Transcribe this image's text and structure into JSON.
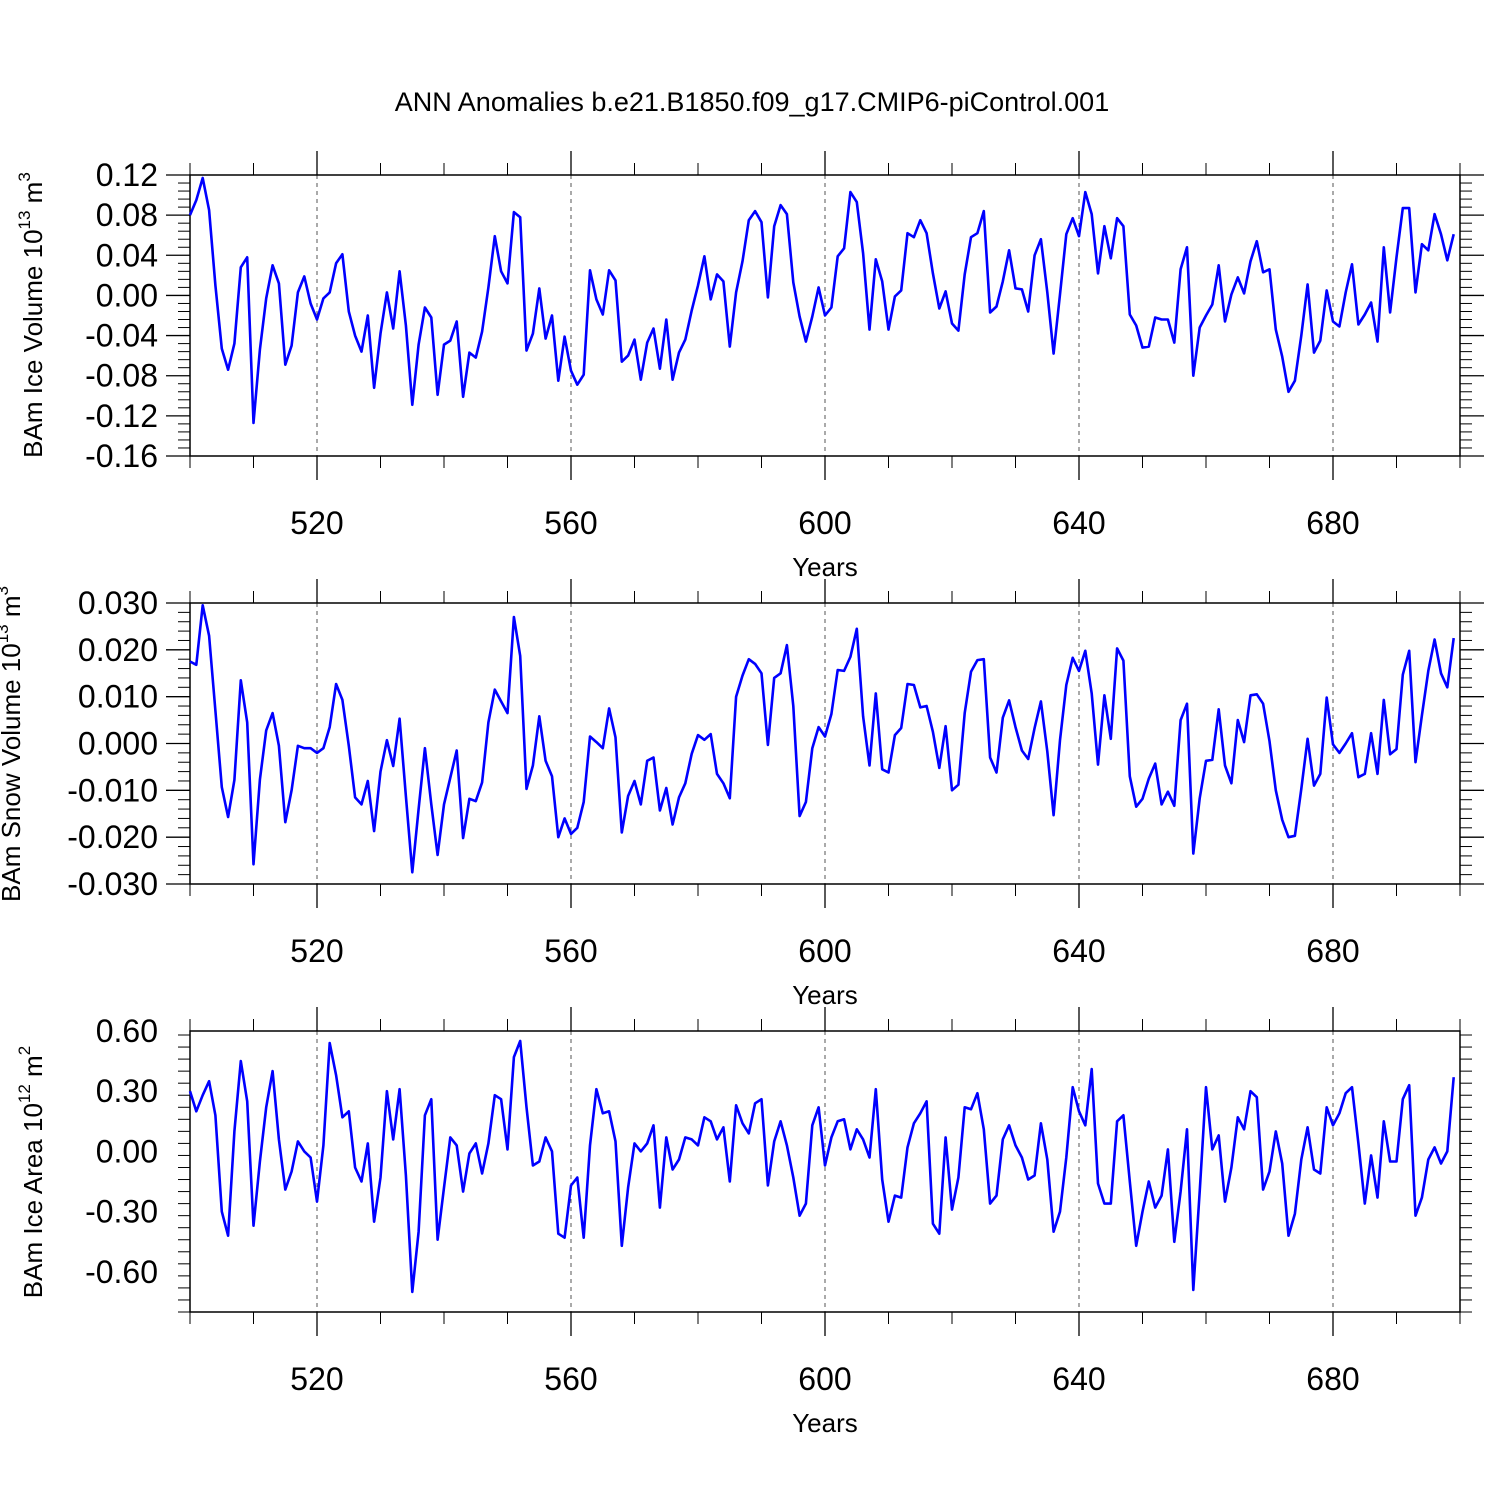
{
  "colors": {
    "series": "#0000ff",
    "axis": "#000000",
    "grid": "#555555"
  },
  "chart_data": [
    {
      "type": "line",
      "title": "ANN Anomalies b.e21.B1850.f09_g17.CMIP6-piControl.001",
      "ylabel_parts": [
        "BAm Ice Volume 10",
        "13",
        " m",
        "3"
      ],
      "xlabel": "Years",
      "xlim": [
        500,
        700
      ],
      "ylim": [
        -0.16,
        0.12
      ],
      "x_ticks": [
        520,
        560,
        600,
        640,
        680
      ],
      "x_tick_labels": [
        "520",
        "560",
        "600",
        "640",
        "680"
      ],
      "y_ticks": [
        0.12,
        0.08,
        0.04,
        0.0,
        -0.04,
        -0.08,
        -0.12,
        -0.16
      ],
      "y_tick_labels": [
        "0.12",
        "0.08",
        "0.04",
        "0.00",
        "-0.04",
        "-0.08",
        "-0.12",
        "-0.16"
      ],
      "x_start": 500,
      "values": [
        0.08,
        0.095,
        0.117,
        0.085,
        0.01,
        -0.053,
        -0.074,
        -0.048,
        0.028,
        0.038,
        -0.127,
        -0.054,
        -0.003,
        0.03,
        0.012,
        -0.069,
        -0.05,
        0.003,
        0.019,
        -0.008,
        -0.024,
        -0.003,
        0.003,
        0.032,
        0.041,
        -0.016,
        -0.04,
        -0.056,
        -0.02,
        -0.092,
        -0.038,
        0.003,
        -0.033,
        0.024,
        -0.03,
        -0.109,
        -0.049,
        -0.012,
        -0.022,
        -0.099,
        -0.049,
        -0.045,
        -0.026,
        -0.101,
        -0.057,
        -0.062,
        -0.036,
        0.008,
        0.059,
        0.024,
        0.012,
        0.083,
        0.078,
        -0.055,
        -0.038,
        0.007,
        -0.043,
        -0.02,
        -0.085,
        -0.041,
        -0.075,
        -0.089,
        -0.079,
        0.025,
        -0.004,
        -0.019,
        0.025,
        0.015,
        -0.066,
        -0.06,
        -0.044,
        -0.084,
        -0.047,
        -0.033,
        -0.073,
        -0.024,
        -0.084,
        -0.057,
        -0.044,
        -0.015,
        0.01,
        0.039,
        -0.004,
        0.021,
        0.014,
        -0.051,
        0.003,
        0.034,
        0.075,
        0.084,
        0.073,
        -0.002,
        0.069,
        0.09,
        0.081,
        0.013,
        -0.021,
        -0.046,
        -0.021,
        0.008,
        -0.02,
        -0.012,
        0.039,
        0.047,
        0.103,
        0.093,
        0.042,
        -0.034,
        0.036,
        0.014,
        -0.034,
        -0.001,
        0.005,
        0.062,
        0.058,
        0.075,
        0.062,
        0.022,
        -0.013,
        0.004,
        -0.028,
        -0.035,
        0.021,
        0.058,
        0.062,
        0.084,
        -0.017,
        -0.011,
        0.014,
        0.045,
        0.007,
        0.006,
        -0.016,
        0.04,
        0.056,
        0.003,
        -0.058,
        0.001,
        0.061,
        0.077,
        0.059,
        0.103,
        0.081,
        0.022,
        0.069,
        0.037,
        0.077,
        0.069,
        -0.019,
        -0.03,
        -0.052,
        -0.051,
        -0.022,
        -0.024,
        -0.024,
        -0.047,
        0.026,
        0.048,
        -0.08,
        -0.032,
        -0.02,
        -0.009,
        0.03,
        -0.026,
        0.001,
        0.018,
        0.002,
        0.034,
        0.054,
        0.023,
        0.026,
        -0.034,
        -0.061,
        -0.096,
        -0.085,
        -0.04,
        0.011,
        -0.057,
        -0.045,
        0.005,
        -0.026,
        -0.031,
        0.003,
        0.031,
        -0.029,
        -0.019,
        -0.007,
        -0.046,
        0.048,
        -0.017,
        0.038,
        0.087,
        0.087,
        0.003,
        0.051,
        0.045,
        0.081,
        0.061,
        0.035,
        0.061
      ]
    },
    {
      "type": "line",
      "ylabel_parts": [
        "BAm Snow Volume 10",
        "13",
        " m",
        "3"
      ],
      "xlabel": "Years",
      "xlim": [
        500,
        700
      ],
      "ylim": [
        -0.03,
        0.03
      ],
      "x_ticks": [
        520,
        560,
        600,
        640,
        680
      ],
      "x_tick_labels": [
        "520",
        "560",
        "600",
        "640",
        "680"
      ],
      "y_ticks": [
        0.03,
        0.02,
        0.01,
        0.0,
        -0.01,
        -0.02,
        -0.03
      ],
      "y_tick_labels": [
        "0.030",
        "0.020",
        "0.010",
        "0.000",
        "-0.010",
        "-0.020",
        "-0.030"
      ],
      "x_start": 500,
      "values": [
        0.0175,
        0.0168,
        0.0295,
        0.023,
        0.007,
        -0.0093,
        -0.0157,
        -0.0078,
        0.0135,
        0.0045,
        -0.0258,
        -0.0077,
        0.0028,
        0.0065,
        -0.0005,
        -0.0168,
        -0.01,
        -0.0005,
        -0.001,
        -0.001,
        -0.002,
        -0.001,
        0.0035,
        0.0127,
        0.0093,
        -0.0005,
        -0.0115,
        -0.013,
        -0.008,
        -0.0187,
        -0.006,
        0.0007,
        -0.0048,
        0.0053,
        -0.0113,
        -0.0275,
        -0.014,
        -0.001,
        -0.013,
        -0.0238,
        -0.013,
        -0.0073,
        -0.0015,
        -0.0202,
        -0.0118,
        -0.0123,
        -0.0083,
        0.0045,
        0.0115,
        0.009,
        0.0065,
        0.027,
        0.0187,
        -0.0097,
        -0.0047,
        0.0058,
        -0.0037,
        -0.007,
        -0.02,
        -0.016,
        -0.0193,
        -0.018,
        -0.0125,
        0.0015,
        0.0003,
        -0.001,
        0.0075,
        0.0013,
        -0.019,
        -0.0112,
        -0.008,
        -0.013,
        -0.0037,
        -0.003,
        -0.0143,
        -0.0095,
        -0.0173,
        -0.0115,
        -0.0085,
        -0.0022,
        0.0018,
        0.0008,
        0.002,
        -0.0065,
        -0.0085,
        -0.0117,
        0.01,
        0.0145,
        0.018,
        0.017,
        0.015,
        -0.0003,
        0.014,
        0.015,
        0.021,
        0.008,
        -0.0155,
        -0.0125,
        -0.001,
        0.0035,
        0.0015,
        0.0063,
        0.0157,
        0.0155,
        0.0185,
        0.0245,
        0.0058,
        -0.0047,
        0.0107,
        -0.0055,
        -0.0062,
        0.0018,
        0.0033,
        0.0127,
        0.0125,
        0.0077,
        0.008,
        0.0025,
        -0.0052,
        0.0037,
        -0.01,
        -0.0088,
        0.0065,
        0.0153,
        0.0178,
        0.018,
        -0.003,
        -0.0062,
        0.0055,
        0.0092,
        0.0035,
        -0.0015,
        -0.0033,
        0.0033,
        0.009,
        -0.0017,
        -0.0153,
        0.0007,
        0.0125,
        0.0183,
        0.0155,
        0.0198,
        0.0107,
        -0.0045,
        0.0103,
        0.001,
        0.0203,
        0.0177,
        -0.007,
        -0.0135,
        -0.0118,
        -0.0075,
        -0.0043,
        -0.013,
        -0.0103,
        -0.0133,
        0.005,
        0.0085,
        -0.0235,
        -0.0117,
        -0.0037,
        -0.0035,
        0.0073,
        -0.0047,
        -0.0085,
        0.005,
        0.0003,
        0.0103,
        0.0105,
        0.0085,
        0.0005,
        -0.01,
        -0.0163,
        -0.02,
        -0.0197,
        -0.0097,
        0.001,
        -0.009,
        -0.0065,
        0.0098,
        -0.0002,
        -0.002,
        0.0,
        0.0022,
        -0.0072,
        -0.0065,
        0.0022,
        -0.0065,
        0.0093,
        -0.0023,
        -0.0012,
        0.0147,
        0.0198,
        -0.004,
        0.006,
        0.0155,
        0.0222,
        0.015,
        0.012,
        0.0225
      ]
    },
    {
      "type": "line",
      "ylabel_parts": [
        "BAm Ice Area 10",
        "12",
        " m",
        "2"
      ],
      "xlabel": "Years",
      "xlim": [
        500,
        700
      ],
      "ylim": [
        -0.8,
        0.6
      ],
      "x_ticks": [
        520,
        560,
        600,
        640,
        680
      ],
      "x_tick_labels": [
        "520",
        "560",
        "600",
        "640",
        "680"
      ],
      "y_ticks": [
        0.6,
        0.3,
        0.0,
        -0.3,
        -0.6
      ],
      "y_tick_labels": [
        "0.60",
        "0.30",
        "0.00",
        "-0.30",
        "-0.60"
      ],
      "x_start": 500,
      "values": [
        0.3,
        0.2,
        0.28,
        0.35,
        0.18,
        -0.3,
        -0.42,
        0.1,
        0.45,
        0.25,
        -0.37,
        -0.05,
        0.22,
        0.4,
        0.06,
        -0.19,
        -0.1,
        0.05,
        0.0,
        -0.03,
        -0.25,
        0.03,
        0.54,
        0.38,
        0.17,
        0.2,
        -0.08,
        -0.15,
        0.04,
        -0.35,
        -0.13,
        0.3,
        0.06,
        0.31,
        -0.12,
        -0.7,
        -0.4,
        0.18,
        0.26,
        -0.44,
        -0.18,
        0.07,
        0.03,
        -0.2,
        -0.01,
        0.04,
        -0.11,
        0.04,
        0.28,
        0.26,
        0.01,
        0.47,
        0.55,
        0.22,
        -0.07,
        -0.05,
        0.07,
        0.0,
        -0.41,
        -0.43,
        -0.17,
        -0.13,
        -0.43,
        0.03,
        0.31,
        0.19,
        0.2,
        0.05,
        -0.47,
        -0.18,
        0.04,
        0.0,
        0.04,
        0.13,
        -0.28,
        0.07,
        -0.09,
        -0.04,
        0.07,
        0.06,
        0.03,
        0.17,
        0.15,
        0.06,
        0.12,
        -0.15,
        0.23,
        0.14,
        0.09,
        0.24,
        0.26,
        -0.17,
        0.05,
        0.15,
        0.03,
        -0.13,
        -0.32,
        -0.26,
        0.13,
        0.22,
        -0.07,
        0.07,
        0.15,
        0.16,
        0.01,
        0.11,
        0.06,
        -0.03,
        0.31,
        -0.14,
        -0.35,
        -0.22,
        -0.23,
        0.02,
        0.14,
        0.19,
        0.25,
        -0.36,
        -0.41,
        0.07,
        -0.29,
        -0.13,
        0.22,
        0.21,
        0.29,
        0.11,
        -0.26,
        -0.22,
        0.06,
        0.13,
        0.03,
        -0.03,
        -0.14,
        -0.12,
        0.14,
        -0.04,
        -0.4,
        -0.3,
        -0.03,
        0.32,
        0.2,
        0.13,
        0.41,
        -0.16,
        -0.26,
        -0.26,
        0.15,
        0.18,
        -0.15,
        -0.47,
        -0.3,
        -0.15,
        -0.28,
        -0.22,
        0.01,
        -0.45,
        -0.2,
        0.11,
        -0.69,
        -0.2,
        0.32,
        0.01,
        0.08,
        -0.25,
        -0.08,
        0.17,
        0.11,
        0.3,
        0.27,
        -0.19,
        -0.1,
        0.1,
        -0.06,
        -0.42,
        -0.31,
        -0.04,
        0.12,
        -0.09,
        -0.11,
        0.22,
        0.13,
        0.19,
        0.29,
        0.32,
        0.04,
        -0.26,
        -0.02,
        -0.23,
        0.15,
        -0.05,
        -0.05,
        0.26,
        0.33,
        -0.32,
        -0.23,
        -0.04,
        0.02,
        -0.06,
        0.0,
        0.37
      ]
    }
  ]
}
